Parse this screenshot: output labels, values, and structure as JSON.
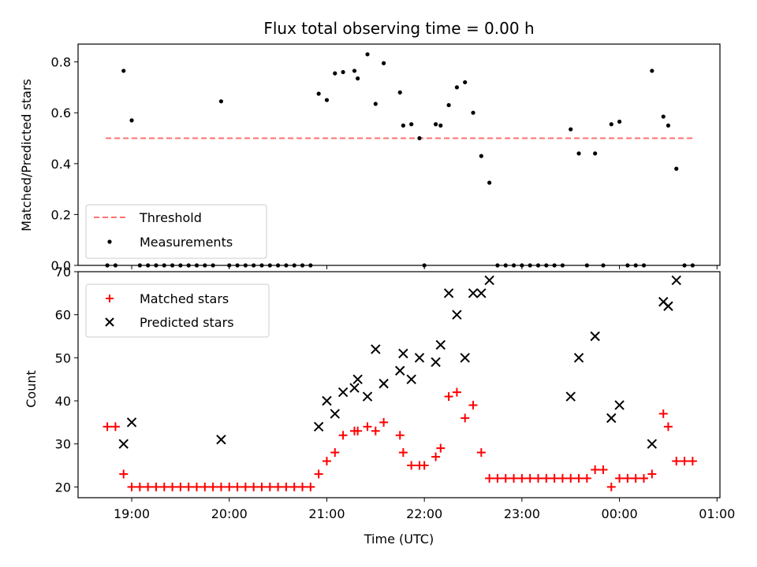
{
  "chart_data": [
    {
      "type": "scatter",
      "title": "Flux total observing time = 0.00 h",
      "xlabel": "",
      "ylabel": "Matched/Predicted stars",
      "ylim": [
        0,
        0.87
      ],
      "yticks": [
        "0.0",
        "0.2",
        "0.4",
        "0.6",
        "0.8"
      ],
      "x_range_hours": [
        18.45,
        25.03
      ],
      "threshold": {
        "value": 0.5,
        "x_start": "18:44",
        "x_end": "00:45",
        "color": "#ff7070",
        "label": "Threshold"
      },
      "legend": {
        "placement": "lower-left",
        "entries": [
          "Threshold",
          "Measurements"
        ]
      },
      "series": [
        {
          "name": "Measurements",
          "marker": "dot",
          "color": "#000000",
          "points": [
            [
              "18:45",
              0
            ],
            [
              "18:50",
              0
            ],
            [
              "18:55",
              0.765
            ],
            [
              "19:00",
              0.57
            ],
            [
              "19:05",
              0
            ],
            [
              "19:10",
              0
            ],
            [
              "19:15",
              0
            ],
            [
              "19:20",
              0
            ],
            [
              "19:25",
              0
            ],
            [
              "19:30",
              0
            ],
            [
              "19:35",
              0
            ],
            [
              "19:40",
              0
            ],
            [
              "19:45",
              0
            ],
            [
              "19:50",
              0
            ],
            [
              "19:55",
              0.645
            ],
            [
              "20:00",
              0
            ],
            [
              "20:05",
              0
            ],
            [
              "20:10",
              0
            ],
            [
              "20:15",
              0
            ],
            [
              "20:20",
              0
            ],
            [
              "20:25",
              0
            ],
            [
              "20:30",
              0
            ],
            [
              "20:35",
              0
            ],
            [
              "20:40",
              0
            ],
            [
              "20:45",
              0
            ],
            [
              "20:50",
              0
            ],
            [
              "20:55",
              0.675
            ],
            [
              "21:00",
              0.65
            ],
            [
              "21:05",
              0.755
            ],
            [
              "21:10",
              0.76
            ],
            [
              "21:17",
              0.765
            ],
            [
              "21:19",
              0.735
            ],
            [
              "21:25",
              0.83
            ],
            [
              "21:30",
              0.635
            ],
            [
              "21:35",
              0.795
            ],
            [
              "21:45",
              0.68
            ],
            [
              "21:47",
              0.55
            ],
            [
              "21:52",
              0.555
            ],
            [
              "21:57",
              0.5
            ],
            [
              "22:00",
              0
            ],
            [
              "22:07",
              0.555
            ],
            [
              "22:10",
              0.55
            ],
            [
              "22:15",
              0.63
            ],
            [
              "22:20",
              0.7
            ],
            [
              "22:25",
              0.72
            ],
            [
              "22:30",
              0.6
            ],
            [
              "22:35",
              0.43
            ],
            [
              "22:40",
              0.325
            ],
            [
              "22:45",
              0
            ],
            [
              "22:50",
              0
            ],
            [
              "22:55",
              0
            ],
            [
              "23:00",
              0
            ],
            [
              "23:05",
              0
            ],
            [
              "23:10",
              0
            ],
            [
              "23:15",
              0
            ],
            [
              "23:20",
              0
            ],
            [
              "23:25",
              0
            ],
            [
              "23:30",
              0.535
            ],
            [
              "23:35",
              0.44
            ],
            [
              "23:40",
              0
            ],
            [
              "23:45",
              0.44
            ],
            [
              "23:50",
              0
            ],
            [
              "23:55",
              0.555
            ],
            [
              "00:00",
              0.565
            ],
            [
              "00:05",
              0
            ],
            [
              "00:10",
              0
            ],
            [
              "00:15",
              0
            ],
            [
              "00:20",
              0.765
            ],
            [
              "00:27",
              0.585
            ],
            [
              "00:30",
              0.55
            ],
            [
              "00:35",
              0.38
            ],
            [
              "00:40",
              0
            ],
            [
              "00:45",
              0
            ]
          ]
        }
      ]
    },
    {
      "type": "scatter",
      "title": "",
      "xlabel": "Time (UTC)",
      "ylabel": "Count",
      "ylim": [
        17.5,
        70
      ],
      "yticks": [
        "20",
        "30",
        "40",
        "50",
        "60",
        "70"
      ],
      "xticks": [
        "19:00",
        "20:00",
        "21:00",
        "22:00",
        "23:00",
        "00:00",
        "01:00"
      ],
      "x_range_hours": [
        18.45,
        25.03
      ],
      "legend": {
        "placement": "top-left",
        "entries": [
          "Matched stars",
          "Predicted stars"
        ]
      },
      "series": [
        {
          "name": "Matched stars",
          "marker": "plus",
          "color": "#ff0000",
          "points": [
            [
              "18:45",
              34
            ],
            [
              "18:50",
              34
            ],
            [
              "18:55",
              23
            ],
            [
              "19:00",
              20
            ],
            [
              "19:05",
              20
            ],
            [
              "19:10",
              20
            ],
            [
              "19:15",
              20
            ],
            [
              "19:20",
              20
            ],
            [
              "19:25",
              20
            ],
            [
              "19:30",
              20
            ],
            [
              "19:35",
              20
            ],
            [
              "19:40",
              20
            ],
            [
              "19:45",
              20
            ],
            [
              "19:50",
              20
            ],
            [
              "19:55",
              20
            ],
            [
              "20:00",
              20
            ],
            [
              "20:05",
              20
            ],
            [
              "20:10",
              20
            ],
            [
              "20:15",
              20
            ],
            [
              "20:20",
              20
            ],
            [
              "20:25",
              20
            ],
            [
              "20:30",
              20
            ],
            [
              "20:35",
              20
            ],
            [
              "20:40",
              20
            ],
            [
              "20:45",
              20
            ],
            [
              "20:50",
              20
            ],
            [
              "20:55",
              23
            ],
            [
              "21:00",
              26
            ],
            [
              "21:05",
              28
            ],
            [
              "21:10",
              32
            ],
            [
              "21:17",
              33
            ],
            [
              "21:19",
              33
            ],
            [
              "21:25",
              34
            ],
            [
              "21:30",
              33
            ],
            [
              "21:35",
              35
            ],
            [
              "21:45",
              32
            ],
            [
              "21:47",
              28
            ],
            [
              "21:52",
              25
            ],
            [
              "21:57",
              25
            ],
            [
              "22:00",
              25
            ],
            [
              "22:07",
              27
            ],
            [
              "22:10",
              29
            ],
            [
              "22:15",
              41
            ],
            [
              "22:20",
              42
            ],
            [
              "22:25",
              36
            ],
            [
              "22:30",
              39
            ],
            [
              "22:35",
              28
            ],
            [
              "22:40",
              22
            ],
            [
              "22:45",
              22
            ],
            [
              "22:50",
              22
            ],
            [
              "22:55",
              22
            ],
            [
              "23:00",
              22
            ],
            [
              "23:05",
              22
            ],
            [
              "23:10",
              22
            ],
            [
              "23:15",
              22
            ],
            [
              "23:20",
              22
            ],
            [
              "23:25",
              22
            ],
            [
              "23:30",
              22
            ],
            [
              "23:35",
              22
            ],
            [
              "23:40",
              22
            ],
            [
              "23:45",
              24
            ],
            [
              "23:50",
              24
            ],
            [
              "23:55",
              20
            ],
            [
              "00:00",
              22
            ],
            [
              "00:05",
              22
            ],
            [
              "00:10",
              22
            ],
            [
              "00:15",
              22
            ],
            [
              "00:20",
              23
            ],
            [
              "00:27",
              37
            ],
            [
              "00:30",
              34
            ],
            [
              "00:35",
              26
            ],
            [
              "00:40",
              26
            ],
            [
              "00:45",
              26
            ]
          ]
        },
        {
          "name": "Predicted stars",
          "marker": "x",
          "color": "#000000",
          "points": [
            [
              "18:55",
              30
            ],
            [
              "19:00",
              35
            ],
            [
              "19:55",
              31
            ],
            [
              "20:55",
              34
            ],
            [
              "21:00",
              40
            ],
            [
              "21:05",
              37
            ],
            [
              "21:10",
              42
            ],
            [
              "21:17",
              43
            ],
            [
              "21:19",
              45
            ],
            [
              "21:25",
              41
            ],
            [
              "21:30",
              52
            ],
            [
              "21:35",
              44
            ],
            [
              "21:45",
              47
            ],
            [
              "21:47",
              51
            ],
            [
              "21:52",
              45
            ],
            [
              "21:57",
              50
            ],
            [
              "22:07",
              49
            ],
            [
              "22:10",
              53
            ],
            [
              "22:15",
              65
            ],
            [
              "22:20",
              60
            ],
            [
              "22:25",
              50
            ],
            [
              "22:30",
              65
            ],
            [
              "22:35",
              65
            ],
            [
              "22:40",
              68
            ],
            [
              "23:30",
              41
            ],
            [
              "23:35",
              50
            ],
            [
              "23:45",
              55
            ],
            [
              "23:55",
              36
            ],
            [
              "00:00",
              39
            ],
            [
              "00:20",
              30
            ],
            [
              "00:27",
              63
            ],
            [
              "00:30",
              62
            ],
            [
              "00:35",
              68
            ]
          ]
        }
      ]
    }
  ]
}
